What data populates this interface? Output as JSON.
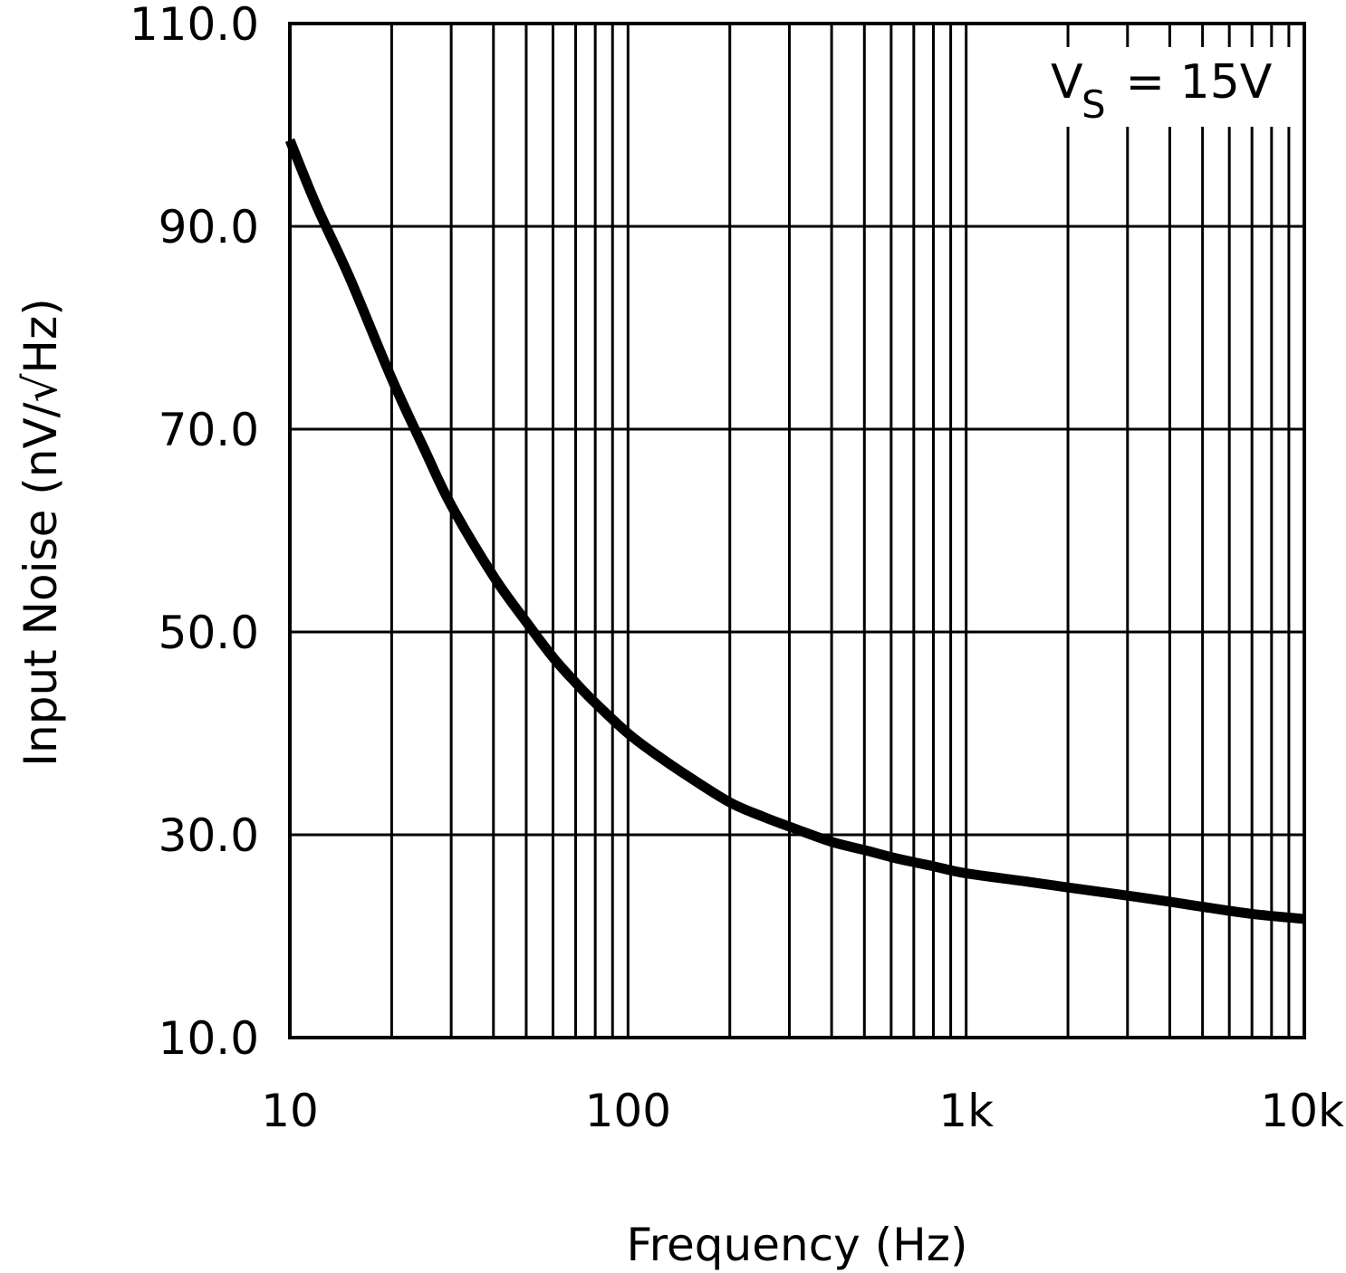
{
  "chart_data": {
    "type": "line",
    "title": "",
    "xlabel": "Frequency (Hz)",
    "ylabel": "Input Noise (nV/√Hz)",
    "x_scale": "log",
    "xlim": [
      10,
      10000
    ],
    "ylim": [
      10.0,
      110.0
    ],
    "x_ticks": [
      {
        "value": 10,
        "label": "10"
      },
      {
        "value": 100,
        "label": "100"
      },
      {
        "value": 1000,
        "label": "1k"
      },
      {
        "value": 10000,
        "label": "10k"
      }
    ],
    "y_ticks": [
      {
        "value": 10,
        "label": "10.0"
      },
      {
        "value": 30,
        "label": "30.0"
      },
      {
        "value": 50,
        "label": "50.0"
      },
      {
        "value": 70,
        "label": "70.0"
      },
      {
        "value": 90,
        "label": "90.0"
      },
      {
        "value": 110,
        "label": "110.0"
      }
    ],
    "grid": true,
    "annotation": {
      "main": "V",
      "sub": "S",
      "rest": " = 15V"
    },
    "series": [
      {
        "color": "#000000",
        "x": [
          10,
          12,
          15,
          20,
          25,
          30,
          40,
          50,
          60,
          70,
          80,
          100,
          120,
          150,
          200,
          250,
          300,
          400,
          500,
          600,
          700,
          800,
          1000,
          1500,
          2000,
          3000,
          4000,
          5000,
          7000,
          10000
        ],
        "y": [
          98.5,
          92,
          85,
          75,
          68,
          62.5,
          55.5,
          51,
          47.5,
          45,
          43,
          40,
          38,
          35.8,
          33.2,
          31.8,
          30.8,
          29.3,
          28.5,
          27.8,
          27.3,
          26.9,
          26.2,
          25.4,
          24.8,
          24,
          23.4,
          22.9,
          22.2,
          21.7
        ]
      }
    ]
  }
}
